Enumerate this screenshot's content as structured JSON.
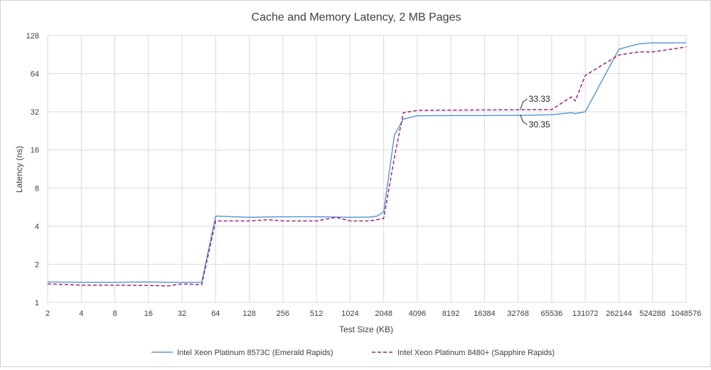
{
  "chart_data": {
    "type": "line",
    "title": "Cache and Memory Latency, 2 MB Pages",
    "xlabel": "Test Size (KB)",
    "ylabel": "Latency (ns)",
    "x_scale": "log2",
    "y_scale": "log2",
    "xlim": [
      2,
      1048576
    ],
    "ylim": [
      1,
      128
    ],
    "x_ticks": [
      "2",
      "4",
      "8",
      "16",
      "32",
      "64",
      "128",
      "256",
      "512",
      "1024",
      "2048",
      "4096",
      "8192",
      "16384",
      "32768",
      "65536",
      "131072",
      "262144",
      "524288",
      "1048576"
    ],
    "y_ticks": [
      "1",
      "2",
      "4",
      "8",
      "16",
      "32",
      "64",
      "128"
    ],
    "grid": true,
    "legend_position": "bottom",
    "series": [
      {
        "name": "Intel Xeon Platinum 8573C (Emerald Rapids)",
        "color": "#5b9bd5",
        "dash": "solid",
        "points": [
          [
            2,
            1.45
          ],
          [
            4,
            1.44
          ],
          [
            8,
            1.44
          ],
          [
            16,
            1.45
          ],
          [
            24,
            1.44
          ],
          [
            32,
            1.44
          ],
          [
            48,
            1.44
          ],
          [
            64,
            4.8
          ],
          [
            128,
            4.7
          ],
          [
            256,
            4.75
          ],
          [
            512,
            4.75
          ],
          [
            1024,
            4.7
          ],
          [
            1536,
            4.72
          ],
          [
            1792,
            4.8
          ],
          [
            2048,
            5.2
          ],
          [
            2560,
            21
          ],
          [
            3072,
            28
          ],
          [
            4096,
            29.8
          ],
          [
            8192,
            29.9
          ],
          [
            16384,
            29.9
          ],
          [
            32768,
            30.0
          ],
          [
            65536,
            30.35
          ],
          [
            98304,
            31.5
          ],
          [
            106496,
            31.0
          ],
          [
            131072,
            32.0
          ],
          [
            262144,
            100
          ],
          [
            393216,
            110
          ],
          [
            524288,
            112
          ],
          [
            1048576,
            112
          ]
        ]
      },
      {
        "name": "Intel Xeon Platinum 8480+ (Sapphire Rapids)",
        "color": "#a0237a",
        "dash": "dashed",
        "points": [
          [
            2,
            1.4
          ],
          [
            4,
            1.37
          ],
          [
            8,
            1.37
          ],
          [
            16,
            1.36
          ],
          [
            24,
            1.35
          ],
          [
            32,
            1.4
          ],
          [
            48,
            1.38
          ],
          [
            64,
            4.4
          ],
          [
            128,
            4.4
          ],
          [
            192,
            4.5
          ],
          [
            256,
            4.4
          ],
          [
            512,
            4.4
          ],
          [
            768,
            4.7
          ],
          [
            1024,
            4.4
          ],
          [
            1536,
            4.4
          ],
          [
            2048,
            4.6
          ],
          [
            2560,
            14
          ],
          [
            3072,
            31.5
          ],
          [
            4096,
            32.8
          ],
          [
            8192,
            33.0
          ],
          [
            16384,
            33.1
          ],
          [
            32768,
            33.2
          ],
          [
            65536,
            33.33
          ],
          [
            98304,
            42
          ],
          [
            106496,
            39
          ],
          [
            131072,
            62
          ],
          [
            262144,
            90
          ],
          [
            393216,
            95
          ],
          [
            524288,
            95
          ],
          [
            1048576,
            104
          ]
        ]
      }
    ],
    "annotations": [
      {
        "text": "33.33",
        "series": 1,
        "x": 32768,
        "y": 33.33
      },
      {
        "text": "30.35",
        "series": 0,
        "x": 32768,
        "y": 30.35
      }
    ]
  }
}
